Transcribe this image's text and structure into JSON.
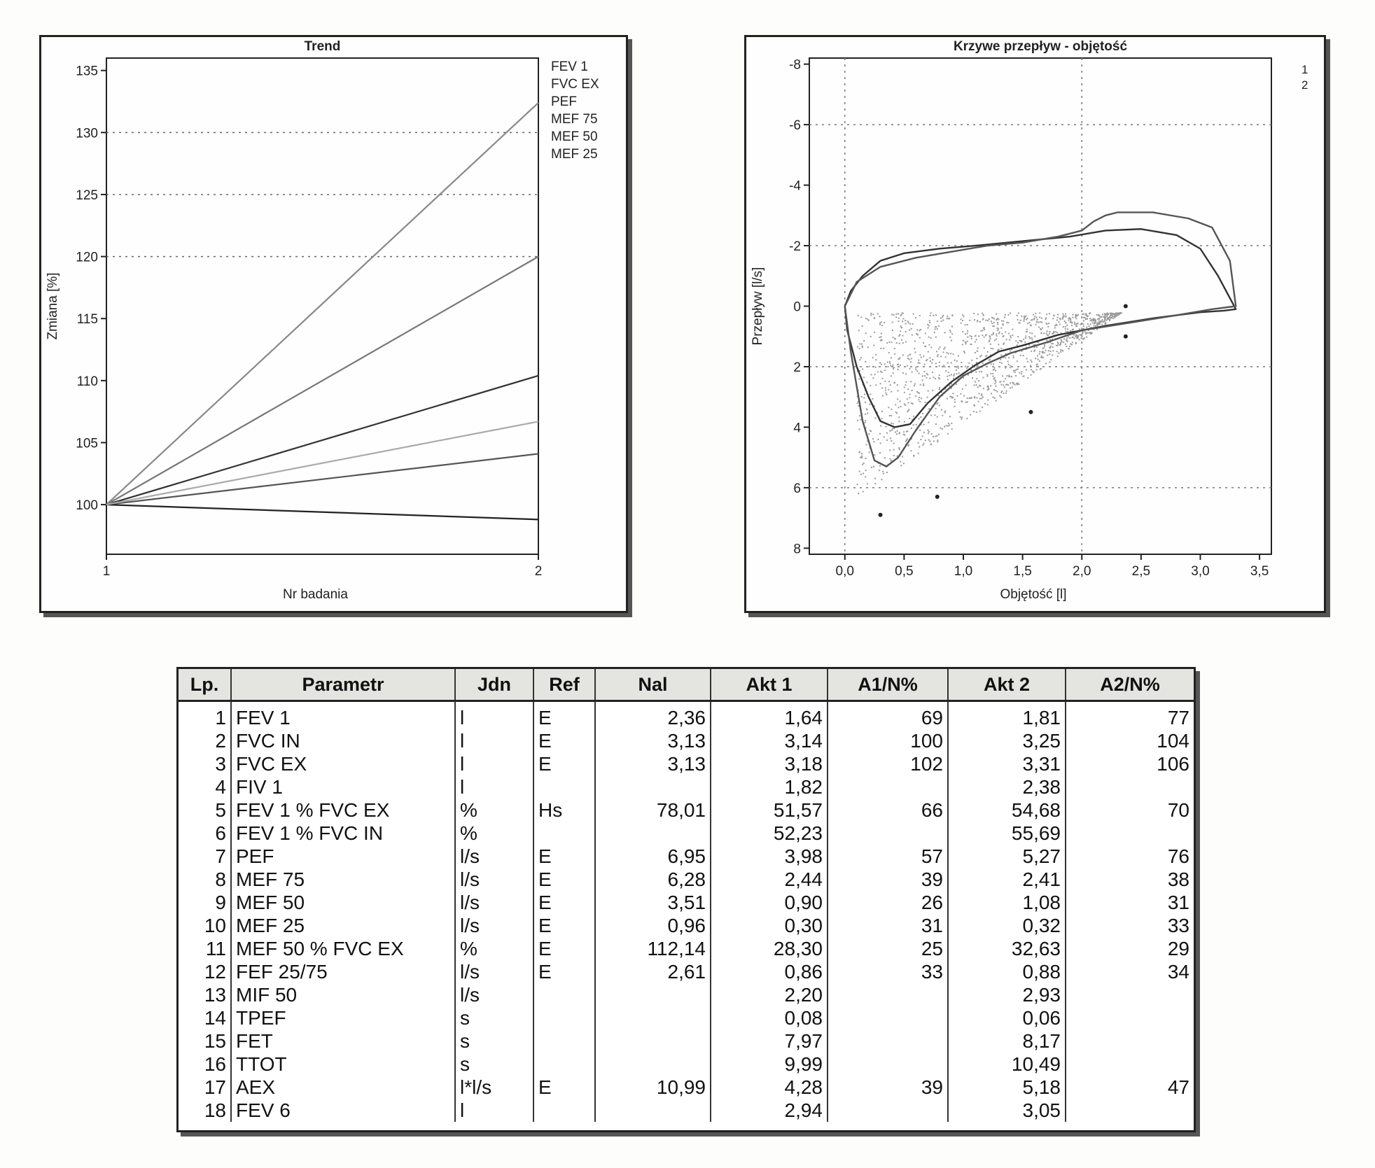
{
  "chart_data": [
    {
      "type": "line",
      "title": "Trend",
      "xlabel": "Nr badania",
      "ylabel": "Zmiana [%]",
      "x": [
        1,
        2
      ],
      "xlim": [
        1,
        2
      ],
      "ylim": [
        96,
        136
      ],
      "yticks": [
        100,
        105,
        110,
        115,
        120,
        125,
        130,
        135
      ],
      "grid_y": [
        120,
        125,
        130
      ],
      "legend_position": "right",
      "series": [
        {
          "name": "FEV 1",
          "values": [
            100,
            110.4
          ],
          "color": "#333333"
        },
        {
          "name": "FVC EX",
          "values": [
            100,
            104.1
          ],
          "color": "#555555"
        },
        {
          "name": "PEF",
          "values": [
            100,
            132.4
          ],
          "color": "#888888"
        },
        {
          "name": "MEF 75",
          "values": [
            100,
            98.8
          ],
          "color": "#222222"
        },
        {
          "name": "MEF 50",
          "values": [
            100,
            120.0
          ],
          "color": "#777777"
        },
        {
          "name": "MEF 25",
          "values": [
            100,
            106.7
          ],
          "color": "#aaaaaa"
        }
      ]
    },
    {
      "type": "line",
      "title": "Krzywe przepływ - objętość",
      "xlabel": "Objętość [l]",
      "ylabel": "Przepływ [l/s]",
      "xlim": [
        -0.3,
        3.6
      ],
      "ylim": [
        -8.2,
        8.2
      ],
      "xticks": [
        "0,0",
        "0,5",
        "1,0",
        "1,5",
        "2,0",
        "2,5",
        "3,0",
        "3,5"
      ],
      "xtick_values": [
        0,
        0.5,
        1,
        1.5,
        2,
        2.5,
        3,
        3.5
      ],
      "yticks": [
        "-8",
        "-6",
        "-4",
        "-2",
        "0",
        "2",
        "4",
        "6",
        "8"
      ],
      "ytick_values": [
        -8,
        -6,
        -4,
        -2,
        0,
        2,
        4,
        6,
        8
      ],
      "legend": [
        "1",
        "2"
      ],
      "legend_position": "top-right",
      "series": [
        {
          "name": "1",
          "x": [
            0,
            0.05,
            0.15,
            0.3,
            0.5,
            0.8,
            1.1,
            1.5,
            1.9,
            2.2,
            2.5,
            2.8,
            3.0,
            3.15,
            3.3,
            3.2,
            3.0,
            2.6,
            2.2,
            1.8,
            1.5,
            1.3,
            1.1,
            0.9,
            0.7,
            0.55,
            0.42,
            0.3,
            0.2,
            0.1,
            0.02,
            0
          ],
          "y": [
            0,
            -0.5,
            -1.0,
            -1.5,
            -1.75,
            -1.9,
            -2.0,
            -2.15,
            -2.3,
            -2.5,
            -2.55,
            -2.35,
            -1.9,
            -1.0,
            0.1,
            0.15,
            0.2,
            0.4,
            0.65,
            0.95,
            1.3,
            1.5,
            1.95,
            2.5,
            3.2,
            3.9,
            4.0,
            3.8,
            3.0,
            2.0,
            0.8,
            0
          ]
        },
        {
          "name": "2",
          "x": [
            0,
            0.1,
            0.3,
            0.6,
            0.9,
            1.2,
            1.5,
            1.8,
            2.0,
            2.1,
            2.2,
            2.3,
            2.6,
            2.9,
            3.1,
            3.25,
            3.3,
            3.1,
            2.8,
            2.4,
            2.0,
            1.7,
            1.4,
            1.2,
            1.0,
            0.8,
            0.6,
            0.45,
            0.35,
            0.25,
            0.15,
            0.05,
            0
          ],
          "y": [
            0,
            -0.8,
            -1.3,
            -1.6,
            -1.8,
            -2.0,
            -2.1,
            -2.3,
            -2.5,
            -2.8,
            -3.0,
            -3.1,
            -3.1,
            -2.9,
            -2.6,
            -1.5,
            0.0,
            0.1,
            0.3,
            0.55,
            0.8,
            1.2,
            1.55,
            1.9,
            2.3,
            3.0,
            4.1,
            5.0,
            5.3,
            5.1,
            3.8,
            1.5,
            0
          ]
        }
      ],
      "markers": [
        {
          "x": 0.3,
          "y": 6.9
        },
        {
          "x": 0.78,
          "y": 6.3
        },
        {
          "x": 1.57,
          "y": 3.5
        },
        {
          "x": 2.37,
          "y": 1.0
        },
        {
          "x": 2.37,
          "y": 0.0
        }
      ]
    },
    {
      "type": "table",
      "columns": [
        "Lp.",
        "Parametr",
        "Jdn",
        "Ref",
        "Nal",
        "Akt 1",
        "A1/N%",
        "Akt 2",
        "A2/N%"
      ],
      "rows": [
        [
          "1",
          "FEV 1",
          "l",
          "E",
          "2,36",
          "1,64",
          "69",
          "1,81",
          "77"
        ],
        [
          "2",
          "FVC IN",
          "l",
          "E",
          "3,13",
          "3,14",
          "100",
          "3,25",
          "104"
        ],
        [
          "3",
          "FVC EX",
          "l",
          "E",
          "3,13",
          "3,18",
          "102",
          "3,31",
          "106"
        ],
        [
          "4",
          "FIV 1",
          "l",
          "",
          "",
          "1,82",
          "",
          "2,38",
          ""
        ],
        [
          "5",
          "FEV 1 % FVC EX",
          "%",
          "Hs",
          "78,01",
          "51,57",
          "66",
          "54,68",
          "70"
        ],
        [
          "6",
          "FEV 1 % FVC IN",
          "%",
          "",
          "",
          "52,23",
          "",
          "55,69",
          ""
        ],
        [
          "7",
          "PEF",
          "l/s",
          "E",
          "6,95",
          "3,98",
          "57",
          "5,27",
          "76"
        ],
        [
          "8",
          "MEF 75",
          "l/s",
          "E",
          "6,28",
          "2,44",
          "39",
          "2,41",
          "38"
        ],
        [
          "9",
          "MEF 50",
          "l/s",
          "E",
          "3,51",
          "0,90",
          "26",
          "1,08",
          "31"
        ],
        [
          "10",
          "MEF 25",
          "l/s",
          "E",
          "0,96",
          "0,30",
          "31",
          "0,32",
          "33"
        ],
        [
          "11",
          "MEF 50 % FVC EX",
          "%",
          "E",
          "112,14",
          "28,30",
          "25",
          "32,63",
          "29"
        ],
        [
          "12",
          "FEF 25/75",
          "l/s",
          "E",
          "2,61",
          "0,86",
          "33",
          "0,88",
          "34"
        ],
        [
          "13",
          "MIF 50",
          "l/s",
          "",
          "",
          "2,20",
          "",
          "2,93",
          ""
        ],
        [
          "14",
          "TPEF",
          "s",
          "",
          "",
          "0,08",
          "",
          "0,06",
          ""
        ],
        [
          "15",
          "FET",
          "s",
          "",
          "",
          "7,97",
          "",
          "8,17",
          ""
        ],
        [
          "16",
          "TTOT",
          "s",
          "",
          "",
          "9,99",
          "",
          "10,49",
          ""
        ],
        [
          "17",
          "AEX",
          "l*l/s",
          "E",
          "10,99",
          "4,28",
          "39",
          "5,18",
          "47"
        ],
        [
          "18",
          "FEV 6",
          "l",
          "",
          "",
          "2,94",
          "",
          "3,05",
          ""
        ]
      ]
    }
  ]
}
